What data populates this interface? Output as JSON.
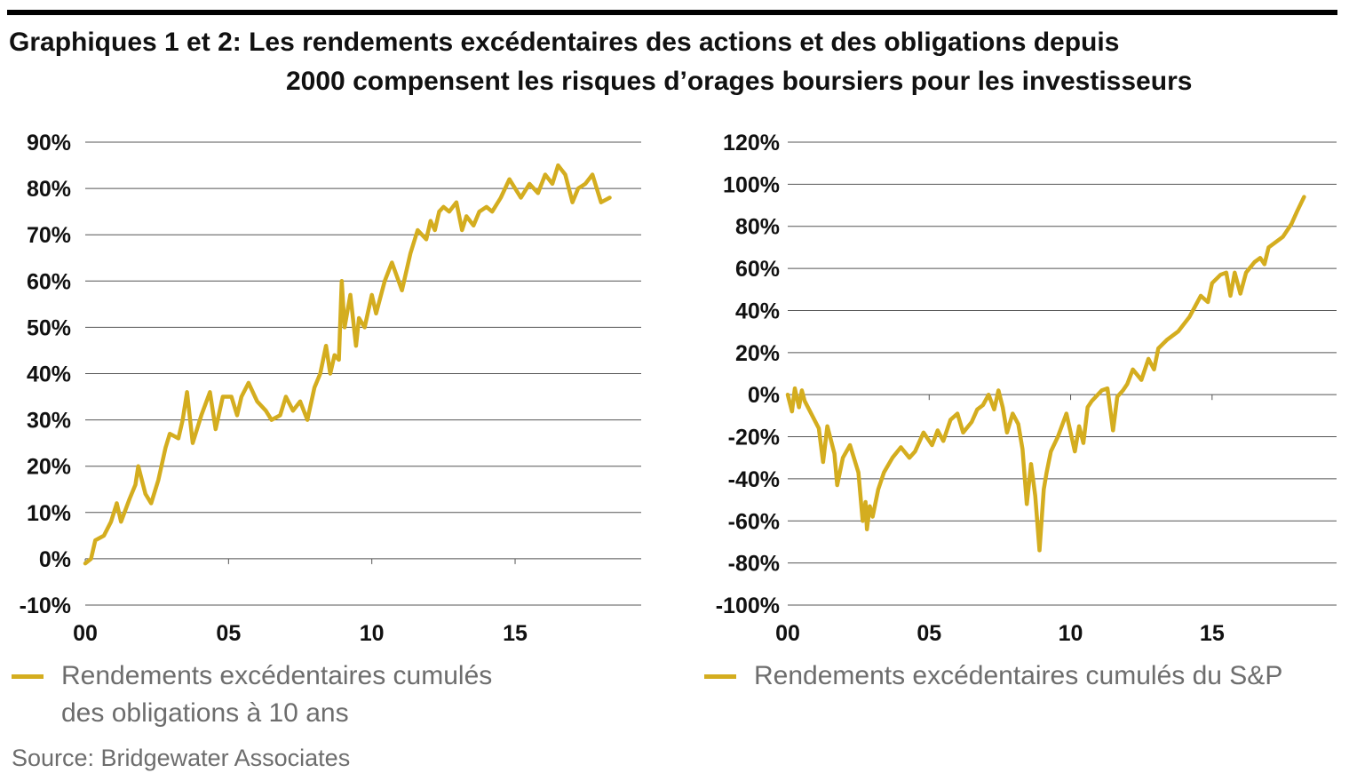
{
  "title": {
    "line1": "Graphiques 1 et 2: Les rendements excédentaires des actions et des obligations depuis",
    "line2": "2000 compensent les risques d’orages boursiers pour les investisseurs"
  },
  "legend": {
    "left_line1": "Rendements excédentaires cumulés",
    "left_line2": "des obligations à 10 ans",
    "right": "Rendements excédentaires cumulés du S&P"
  },
  "source": "Source: Bridgewater Associates",
  "colors": {
    "series": "#d4ad1f",
    "grid": "#555555",
    "text": "#111111",
    "muted": "#6d6d6d"
  },
  "chart_data": [
    {
      "type": "line",
      "ylim": [
        -10,
        90
      ],
      "yticks": [
        "90%",
        "80%",
        "70%",
        "60%",
        "50%",
        "40%",
        "30%",
        "20%",
        "10%",
        "0%",
        "-10%"
      ],
      "ytick_values": [
        90,
        80,
        70,
        60,
        50,
        40,
        30,
        20,
        10,
        0,
        -10
      ],
      "xlim": [
        2000,
        2019.4
      ],
      "xticks": [
        "00",
        "05",
        "10",
        "15"
      ],
      "xtick_values": [
        2000,
        2005,
        2010,
        2015
      ],
      "grid": true,
      "series": [
        {
          "name": "Rendements excédentaires cumulés des obligations à 10 ans",
          "x": [
            2000.0,
            2000.2,
            2000.35,
            2000.65,
            2000.9,
            2001.1,
            2001.25,
            2001.55,
            2001.75,
            2001.85,
            2002.1,
            2002.3,
            2002.55,
            2002.8,
            2002.95,
            2003.25,
            2003.4,
            2003.55,
            2003.75,
            2004.05,
            2004.35,
            2004.55,
            2004.8,
            2005.1,
            2005.3,
            2005.45,
            2005.7,
            2006.0,
            2006.3,
            2006.5,
            2006.8,
            2007.0,
            2007.25,
            2007.5,
            2007.75,
            2008.0,
            2008.2,
            2008.4,
            2008.55,
            2008.7,
            2008.85,
            2008.95,
            2009.05,
            2009.25,
            2009.45,
            2009.55,
            2009.75,
            2010.0,
            2010.15,
            2010.45,
            2010.7,
            2011.05,
            2011.35,
            2011.6,
            2011.9,
            2012.05,
            2012.2,
            2012.35,
            2012.5,
            2012.7,
            2012.95,
            2013.15,
            2013.3,
            2013.55,
            2013.75,
            2014.0,
            2014.2,
            2014.5,
            2014.8,
            2015.2,
            2015.5,
            2015.8,
            2016.05,
            2016.3,
            2016.5,
            2016.75,
            2017.0,
            2017.2,
            2017.45,
            2017.7,
            2018.0,
            2018.3
          ],
          "values": [
            -1,
            0,
            4,
            5,
            8,
            12,
            8,
            13,
            16,
            20,
            14,
            12,
            17,
            24,
            27,
            26,
            30,
            36,
            25,
            31,
            36,
            28,
            35,
            35,
            31,
            35,
            38,
            34,
            32,
            30,
            31,
            35,
            32,
            34,
            30,
            37,
            40,
            46,
            40,
            44,
            43,
            60,
            50,
            57,
            46,
            52,
            50,
            57,
            53,
            60,
            64,
            58,
            66,
            71,
            69,
            73,
            71,
            75,
            76,
            75,
            77,
            71,
            74,
            72,
            75,
            76,
            75,
            78,
            82,
            78,
            81,
            79,
            83,
            81,
            85,
            83,
            77,
            80,
            81,
            83,
            77,
            78
          ]
        }
      ]
    },
    {
      "type": "line",
      "ylim": [
        -100,
        120
      ],
      "yticks": [
        "120%",
        "100%",
        "80%",
        "60%",
        "40%",
        "20%",
        "0%",
        "-20%",
        "-40%",
        "-60%",
        "-80%",
        "-100%"
      ],
      "ytick_values": [
        120,
        100,
        80,
        60,
        40,
        20,
        0,
        -20,
        -40,
        -60,
        -80,
        -100
      ],
      "xlim": [
        2000,
        2019.4
      ],
      "xticks": [
        "00",
        "05",
        "10",
        "15"
      ],
      "xtick_values": [
        2000,
        2005,
        2010,
        2015
      ],
      "grid": true,
      "series": [
        {
          "name": "Rendements excédentaires cumulés du S&P",
          "x": [
            2000.0,
            2000.15,
            2000.25,
            2000.4,
            2000.5,
            2000.6,
            2001.1,
            2001.25,
            2001.4,
            2001.65,
            2001.75,
            2001.95,
            2002.2,
            2002.5,
            2002.65,
            2002.75,
            2002.8,
            2002.9,
            2003.0,
            2003.2,
            2003.4,
            2003.7,
            2004.0,
            2004.3,
            2004.5,
            2004.8,
            2005.1,
            2005.3,
            2005.5,
            2005.75,
            2006.0,
            2006.2,
            2006.5,
            2006.7,
            2006.9,
            2007.1,
            2007.3,
            2007.45,
            2007.6,
            2007.75,
            2007.95,
            2008.15,
            2008.3,
            2008.45,
            2008.6,
            2008.75,
            2008.9,
            2009.05,
            2009.15,
            2009.3,
            2009.55,
            2009.85,
            2010.15,
            2010.3,
            2010.45,
            2010.6,
            2010.75,
            2011.1,
            2011.3,
            2011.5,
            2011.65,
            2011.85,
            2012.0,
            2012.2,
            2012.5,
            2012.75,
            2012.95,
            2013.1,
            2013.4,
            2013.8,
            2014.2,
            2014.6,
            2014.85,
            2015.0,
            2015.3,
            2015.5,
            2015.65,
            2015.8,
            2016.0,
            2016.2,
            2016.5,
            2016.7,
            2016.85,
            2017.0,
            2017.5,
            2017.8,
            2018.0,
            2018.25
          ],
          "values": [
            0,
            -8,
            3,
            -6,
            2,
            -3,
            -16,
            -32,
            -15,
            -28,
            -43,
            -30,
            -24,
            -37,
            -60,
            -51,
            -64,
            -53,
            -58,
            -45,
            -37,
            -30,
            -25,
            -30,
            -27,
            -18,
            -24,
            -17,
            -22,
            -12,
            -9,
            -18,
            -13,
            -7,
            -5,
            0,
            -7,
            2,
            -6,
            -18,
            -9,
            -14,
            -26,
            -52,
            -33,
            -48,
            -74,
            -45,
            -37,
            -27,
            -20,
            -9,
            -27,
            -15,
            -23,
            -6,
            -3,
            2,
            3,
            -17,
            -1,
            2,
            5,
            12,
            7,
            17,
            12,
            22,
            26,
            30,
            37,
            47,
            44,
            53,
            57,
            58,
            47,
            58,
            48,
            58,
            63,
            65,
            62,
            70,
            75,
            81,
            87,
            94
          ]
        }
      ]
    }
  ]
}
